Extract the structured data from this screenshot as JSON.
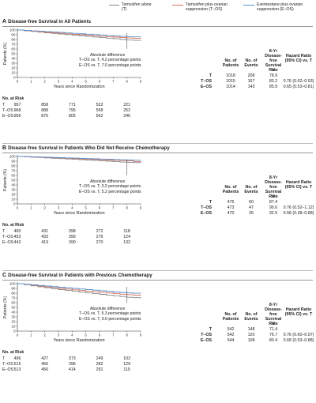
{
  "legend": [
    {
      "label": "Tamoxifen alone (T)",
      "color": "#888888"
    },
    {
      "label": "Tamoxifen plus ovarian suppression (T–OS)",
      "color": "#d4735e"
    },
    {
      "label": "Exemestane plus ovarian suppression (E–OS)",
      "color": "#5b8fc9"
    }
  ],
  "common": {
    "ylabel": "Patients (%)",
    "xlabel": "Years since Randomization",
    "x_ticks": [
      "0",
      "1",
      "2",
      "3",
      "4",
      "5",
      "6",
      "7",
      "8",
      "9"
    ],
    "y_ticks": [
      "0",
      "10",
      "20",
      "30",
      "40",
      "50",
      "60",
      "70",
      "80",
      "90",
      "100"
    ],
    "diff_title": "Absolute difference",
    "hdr_patients": "No. of Patients",
    "hdr_events": "No. of Events",
    "hdr_rate": "8-Yr Disease-free Survival Rate",
    "hdr_rate_unit": "%",
    "hdr_hr": "Hazard Ratio (95% CI) vs. T",
    "risk_title": "No. at Risk",
    "risk_labels": [
      "T",
      "T–OS",
      "E–OS"
    ]
  },
  "panels": [
    {
      "letter": "A",
      "title": "Disease-free Survival in All Patients",
      "diff_lines": [
        "T–OS vs. T, 4.2 percentage points",
        "E–OS vs. T, 7.0 percentage points"
      ],
      "table": [
        {
          "group": "T",
          "patients": "1018",
          "events": "208",
          "rate": "78.9",
          "hr": ""
        },
        {
          "group": "T–OS",
          "patients": "1015",
          "events": "167",
          "rate": "83.2",
          "hr": "0.76 (0.62–0.93)"
        },
        {
          "group": "E–OS",
          "patients": "1014",
          "events": "143",
          "rate": "85.9",
          "hr": "0.65 (0.53–0.81)"
        }
      ],
      "risk": [
        [
          "957",
          "858",
          "771",
          "522",
          "221"
        ],
        [
          "968",
          "888",
          "795",
          "558",
          "252"
        ],
        [
          "956",
          "875",
          "805",
          "562",
          "246"
        ]
      ]
    },
    {
      "letter": "B",
      "title": "Disease-free Survival in Patients Who Did Not Receive Chemotherapy",
      "diff_lines": [
        "T–OS vs. T, 3.2 percentage points",
        "E–OS vs. T, 5.2 percentage points"
      ],
      "table": [
        {
          "group": "T",
          "patients": "476",
          "events": "60",
          "rate": "87.4",
          "hr": ""
        },
        {
          "group": "T–OS",
          "patients": "473",
          "events": "47",
          "rate": "90.6",
          "hr": "0.76 (0.52–1.12)"
        },
        {
          "group": "E–OS",
          "patients": "470",
          "events": "35",
          "rate": "92.5",
          "hr": "0.58 (0.38–0.88)"
        }
      ],
      "risk": [
        [
          "460",
          "431",
          "398",
          "272",
          "118"
        ],
        [
          "453",
          "433",
          "399",
          "276",
          "124"
        ],
        [
          "443",
          "419",
          "390",
          "270",
          "132"
        ]
      ]
    },
    {
      "letter": "C",
      "title": "Disease-free Survival in Patients with Previous Chemotherapy",
      "diff_lines": [
        "T–OS vs. T, 5.3 percentage points",
        "E–OS vs. T, 9.0 percentage points"
      ],
      "table": [
        {
          "group": "T",
          "patients": "542",
          "events": "148",
          "rate": "71.4",
          "hr": ""
        },
        {
          "group": "T–OS",
          "patients": "542",
          "events": "120",
          "rate": "76.7",
          "hr": "0.76 (0.60–0.97)"
        },
        {
          "group": "E–OS",
          "patients": "544",
          "events": "108",
          "rate": "80.4",
          "hr": "0.68 (0.53–0.88)"
        }
      ],
      "risk": [
        [
          "496",
          "427",
          "373",
          "249",
          "102"
        ],
        [
          "515",
          "456",
          "396",
          "282",
          "129"
        ],
        [
          "513",
          "456",
          "414",
          "291",
          "115"
        ]
      ]
    }
  ],
  "chart_data": [
    {
      "type": "line",
      "title": "Disease-free Survival in All Patients",
      "xlabel": "Years since Randomization",
      "ylabel": "Patients (%)",
      "xlim": [
        0,
        9
      ],
      "ylim": [
        0,
        100
      ],
      "x": [
        0,
        1,
        2,
        3,
        4,
        5,
        6,
        7,
        8,
        9
      ],
      "series": [
        {
          "name": "T",
          "color": "#888888",
          "values": [
            100,
            97,
            94,
            91.5,
            89,
            86.5,
            84,
            81.5,
            78.9,
            77.5
          ]
        },
        {
          "name": "T–OS",
          "color": "#d4735e",
          "values": [
            100,
            97.5,
            95,
            93,
            91,
            89,
            87,
            85,
            83.2,
            82
          ]
        },
        {
          "name": "E–OS",
          "color": "#5b8fc9",
          "values": [
            100,
            98.3,
            96.5,
            94.8,
            93,
            91.2,
            89.5,
            87.5,
            85.9,
            85
          ]
        }
      ]
    },
    {
      "type": "line",
      "title": "Disease-free Survival in Patients Who Did Not Receive Chemotherapy",
      "xlabel": "Years since Randomization",
      "ylabel": "Patients (%)",
      "xlim": [
        0,
        9
      ],
      "ylim": [
        0,
        100
      ],
      "x": [
        0,
        1,
        2,
        3,
        4,
        5,
        6,
        7,
        8,
        9
      ],
      "series": [
        {
          "name": "T",
          "color": "#888888",
          "values": [
            100,
            98.5,
            97,
            95.5,
            94,
            92.5,
            91,
            89,
            87.4,
            86.5
          ]
        },
        {
          "name": "T–OS",
          "color": "#d4735e",
          "values": [
            100,
            99,
            98,
            97,
            95.5,
            94.5,
            93,
            92,
            90.6,
            88
          ]
        },
        {
          "name": "E–OS",
          "color": "#5b8fc9",
          "values": [
            100,
            99.2,
            98.5,
            97.5,
            96.5,
            95.5,
            94.5,
            93.5,
            92.5,
            91.5
          ]
        }
      ]
    },
    {
      "type": "line",
      "title": "Disease-free Survival in Patients with Previous Chemotherapy",
      "xlabel": "Years since Randomization",
      "ylabel": "Patients (%)",
      "xlim": [
        0,
        9
      ],
      "ylim": [
        0,
        100
      ],
      "x": [
        0,
        1,
        2,
        3,
        4,
        5,
        6,
        7,
        8,
        9
      ],
      "series": [
        {
          "name": "T",
          "color": "#888888",
          "values": [
            100,
            95.5,
            91.5,
            87.5,
            84,
            80.5,
            77.5,
            74.5,
            71.4,
            69.5
          ]
        },
        {
          "name": "T–OS",
          "color": "#d4735e",
          "values": [
            100,
            96.5,
            93,
            90,
            87,
            84,
            81.5,
            79,
            76.7,
            75
          ]
        },
        {
          "name": "E–OS",
          "color": "#5b8fc9",
          "values": [
            100,
            97.5,
            95,
            92.5,
            90,
            87.5,
            85,
            82.5,
            80.4,
            79.5
          ]
        }
      ]
    }
  ]
}
